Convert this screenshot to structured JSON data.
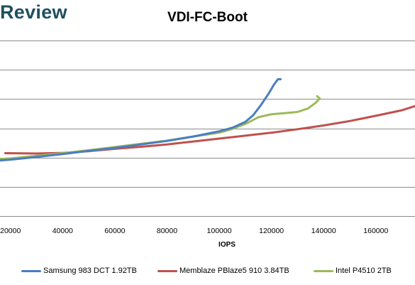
{
  "brand": {
    "text": "Review"
  },
  "chart_data": {
    "type": "line",
    "title": "VDI-FC-Boot",
    "xlabel": "IOPS",
    "ylabel": "",
    "x_ticks": [
      20000,
      40000,
      60000,
      80000,
      100000,
      120000,
      140000,
      160000
    ],
    "x_tick_labels": [
      "20000",
      "40000",
      "60000",
      "80000",
      "100000",
      "120000",
      "140000",
      "160000"
    ],
    "xlim": [
      16000,
      175000
    ],
    "grid": true,
    "legend_position": "bottom",
    "series": [
      {
        "name": "Samsung 983 DCT 1.92TB",
        "color": "#4a7ebf",
        "points": [
          [
            16000,
            1.9
          ],
          [
            20000,
            1.93
          ],
          [
            30000,
            2.02
          ],
          [
            40000,
            2.12
          ],
          [
            50000,
            2.23
          ],
          [
            60000,
            2.33
          ],
          [
            70000,
            2.45
          ],
          [
            80000,
            2.57
          ],
          [
            90000,
            2.72
          ],
          [
            100000,
            2.9
          ],
          [
            105000,
            3.02
          ],
          [
            110000,
            3.22
          ],
          [
            113000,
            3.45
          ],
          [
            116000,
            3.8
          ],
          [
            119000,
            4.2
          ],
          [
            121000,
            4.5
          ],
          [
            122500,
            4.68
          ],
          [
            123500,
            4.68
          ]
        ]
      },
      {
        "name": "Memblaze PBlaze5 910 3.84TB",
        "color": "#c0504d",
        "points": [
          [
            18000,
            2.15
          ],
          [
            30000,
            2.14
          ],
          [
            40000,
            2.16
          ],
          [
            50000,
            2.22
          ],
          [
            60000,
            2.3
          ],
          [
            70000,
            2.37
          ],
          [
            80000,
            2.45
          ],
          [
            90000,
            2.55
          ],
          [
            100000,
            2.65
          ],
          [
            110000,
            2.75
          ],
          [
            120000,
            2.85
          ],
          [
            130000,
            2.97
          ],
          [
            140000,
            3.1
          ],
          [
            150000,
            3.25
          ],
          [
            160000,
            3.43
          ],
          [
            170000,
            3.62
          ],
          [
            175000,
            3.76
          ]
        ]
      },
      {
        "name": "Intel P4510 2TB",
        "color": "#9bbb59",
        "points": [
          [
            16000,
            1.95
          ],
          [
            20000,
            1.97
          ],
          [
            30000,
            2.06
          ],
          [
            40000,
            2.15
          ],
          [
            50000,
            2.25
          ],
          [
            60000,
            2.36
          ],
          [
            70000,
            2.47
          ],
          [
            80000,
            2.58
          ],
          [
            90000,
            2.72
          ],
          [
            100000,
            2.85
          ],
          [
            105000,
            2.98
          ],
          [
            110000,
            3.15
          ],
          [
            115000,
            3.38
          ],
          [
            120000,
            3.48
          ],
          [
            125000,
            3.52
          ],
          [
            130000,
            3.56
          ],
          [
            134000,
            3.68
          ],
          [
            137000,
            3.88
          ],
          [
            138500,
            4.02
          ],
          [
            137500,
            4.1
          ]
        ]
      }
    ]
  }
}
